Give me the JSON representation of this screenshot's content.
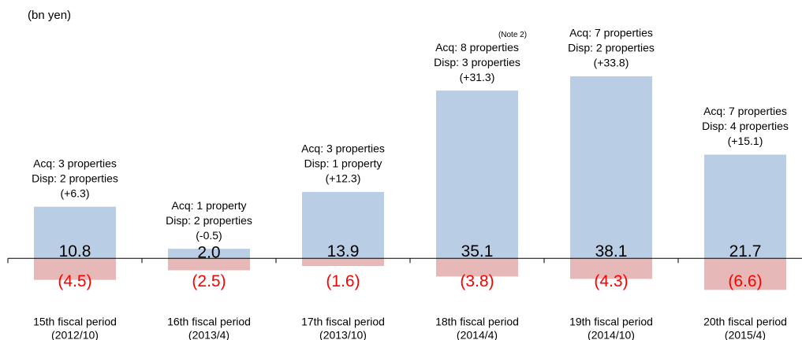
{
  "chart_data": {
    "type": "bar",
    "unit_label": "(bn yen)",
    "categories": [
      "15th fiscal period",
      "16th fiscal period",
      "17th fiscal period",
      "18th fiscal period",
      "19th fiscal period",
      "20th fiscal period"
    ],
    "category_dates": [
      "(2012/10)",
      "(2013/4)",
      "(2013/10)",
      "(2014/4)",
      "(2014/10)",
      "(2015/4)"
    ],
    "series": [
      {
        "color": "#b9cde5",
        "label_color": "#000000",
        "values": [
          10.8,
          2.0,
          13.9,
          35.1,
          38.1,
          21.7
        ],
        "value_labels": [
          "10.8",
          "2.0",
          "13.9",
          "35.1",
          "38.1",
          "21.7"
        ]
      },
      {
        "color": "#e6b9b8",
        "label_color": "#ff0000",
        "values": [
          -4.5,
          -2.5,
          -1.6,
          -3.8,
          -4.3,
          -6.6
        ],
        "value_labels": [
          "(4.5)",
          "(2.5)",
          "(1.6)",
          "(3.8)",
          "(4.3)",
          "(6.6)"
        ]
      }
    ],
    "annotations": [
      [
        "Acq: 3 properties",
        "Disp: 2 properties",
        "(+6.3)"
      ],
      [
        "Acq: 1 property",
        "Disp: 2 properties",
        "(-0.5)"
      ],
      [
        "Acq: 3 properties",
        "Disp: 1 property",
        "(+12.3)"
      ],
      [
        "Acq: 8 properties",
        "Disp: 3 properties",
        "(+31.3)"
      ],
      [
        "Acq: 7 properties",
        "Disp:  2 properties",
        "(+33.8)"
      ],
      [
        "Acq: 7 properties",
        "Disp: 4 properties",
        "(+15.1)"
      ]
    ],
    "note": {
      "index": 3,
      "text": "(Note 2)"
    },
    "ylim": [
      -10,
      45
    ]
  }
}
